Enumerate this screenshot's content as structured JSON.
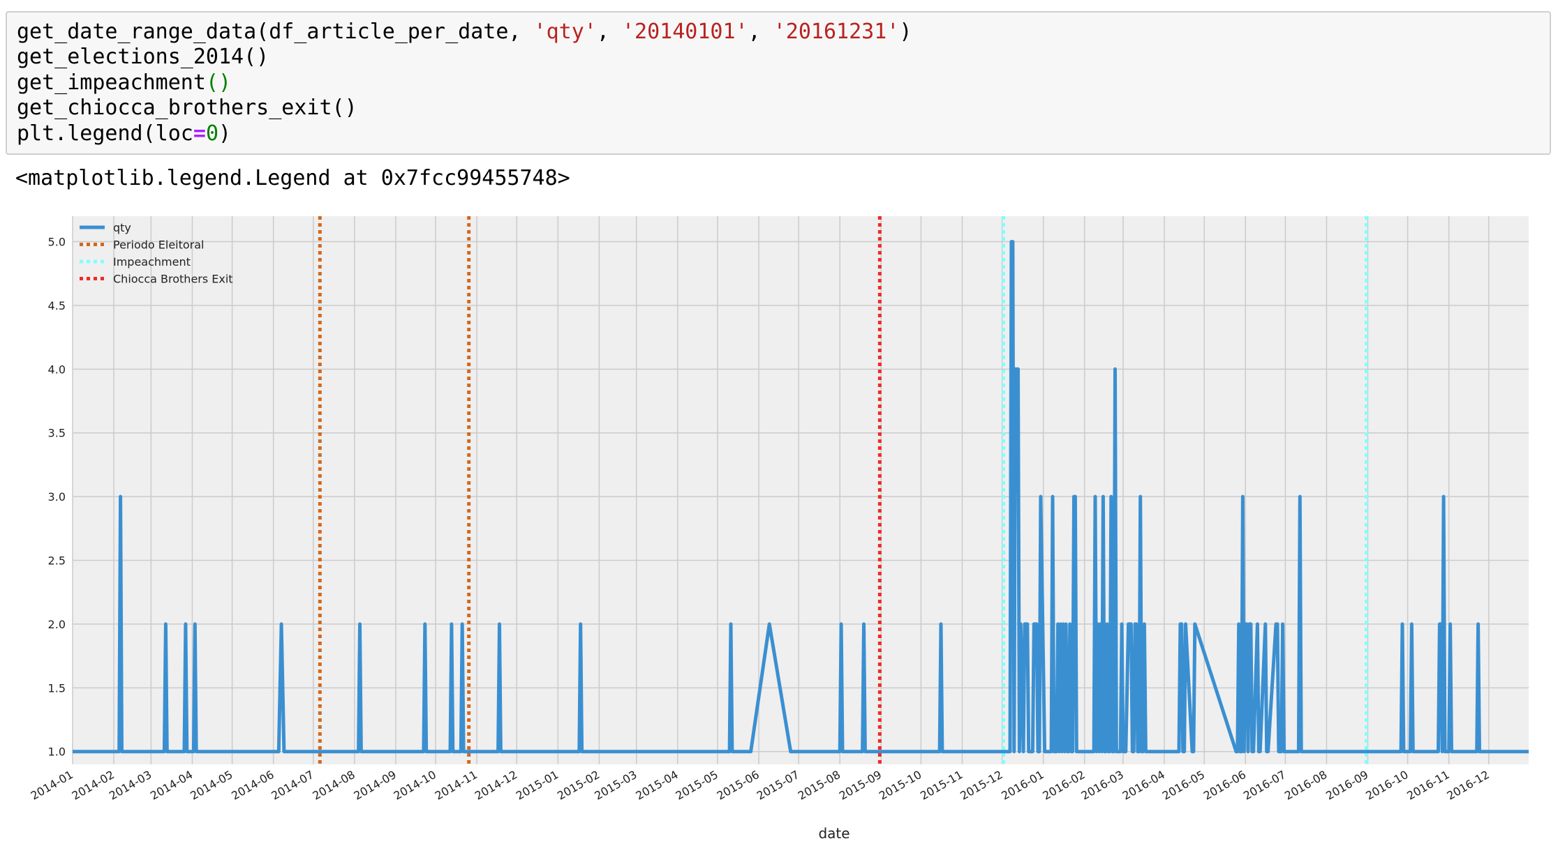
{
  "notebook": {
    "code_lines": [
      [
        {
          "t": "get_date_range_data(df_article_per_date, ",
          "c": "plain"
        },
        {
          "t": "'qty'",
          "c": "str"
        },
        {
          "t": ", ",
          "c": "plain"
        },
        {
          "t": "'20140101'",
          "c": "str"
        },
        {
          "t": ", ",
          "c": "plain"
        },
        {
          "t": "'20161231'",
          "c": "str"
        },
        {
          "t": ")",
          "c": "plain"
        }
      ],
      [
        {
          "t": "get_elections_2014()",
          "c": "plain"
        }
      ],
      [
        {
          "t": "get_impeachment",
          "c": "plain"
        },
        {
          "t": "()",
          "c": "green"
        }
      ],
      [
        {
          "t": "get_chiocca_brothers_exit()",
          "c": "plain"
        }
      ],
      [
        {
          "t": "plt.legend(loc",
          "c": "plain"
        },
        {
          "t": "=",
          "c": "op"
        },
        {
          "t": "0",
          "c": "green"
        },
        {
          "t": ")",
          "c": "plain"
        }
      ]
    ],
    "output_text": "<matplotlib.legend.Legend at 0x7fcc99455748>"
  },
  "chart_data": {
    "type": "line",
    "xlabel": "date",
    "ylabel": "",
    "ylim": [
      0.9,
      5.2
    ],
    "xlim": [
      "2014-01-01",
      "2016-12-31"
    ],
    "y_ticks": [
      "1.0",
      "1.5",
      "2.0",
      "2.5",
      "3.0",
      "3.5",
      "4.0",
      "4.5",
      "5.0"
    ],
    "x_ticks": [
      "2014-01",
      "2014-02",
      "2014-03",
      "2014-04",
      "2014-05",
      "2014-06",
      "2014-07",
      "2014-08",
      "2014-09",
      "2014-10",
      "2014-11",
      "2014-12",
      "2015-01",
      "2015-02",
      "2015-03",
      "2015-04",
      "2015-05",
      "2015-06",
      "2015-07",
      "2015-08",
      "2015-09",
      "2015-10",
      "2015-11",
      "2015-12",
      "2016-01",
      "2016-02",
      "2016-03",
      "2016-04",
      "2016-05",
      "2016-06",
      "2016-07",
      "2016-08",
      "2016-09",
      "2016-10",
      "2016-11",
      "2016-12"
    ],
    "grid": true,
    "legend_position": "top-left",
    "series": [
      {
        "name": "qty",
        "color": "#3a8fd1",
        "style": "solid",
        "x": [
          "2014-01-01",
          "2014-02-05",
          "2014-02-06",
          "2014-02-07",
          "2014-03-11",
          "2014-03-12",
          "2014-03-13",
          "2014-03-26",
          "2014-03-27",
          "2014-03-28",
          "2014-04-02",
          "2014-04-03",
          "2014-04-04",
          "2014-06-05",
          "2014-06-07",
          "2014-06-09",
          "2014-08-04",
          "2014-08-05",
          "2014-08-06",
          "2014-09-22",
          "2014-09-23",
          "2014-09-24",
          "2014-10-12",
          "2014-10-13",
          "2014-10-14",
          "2014-10-20",
          "2014-10-21",
          "2014-10-22",
          "2014-11-17",
          "2014-11-18",
          "2014-11-19",
          "2015-01-17",
          "2015-01-18",
          "2015-01-19",
          "2015-05-10",
          "2015-05-11",
          "2015-05-12",
          "2015-05-26",
          "2015-06-09",
          "2015-06-25",
          "2015-08-01",
          "2015-08-02",
          "2015-08-03",
          "2015-08-18",
          "2015-08-19",
          "2015-08-20",
          "2015-10-15",
          "2015-10-16",
          "2015-10-17",
          "2015-12-07",
          "2015-12-08",
          "2015-12-09",
          "2015-12-10",
          "2015-12-11",
          "2015-12-13",
          "2015-12-14",
          "2015-12-15",
          "2015-12-17",
          "2015-12-18",
          "2015-12-19",
          "2015-12-20",
          "2015-12-21",
          "2015-12-24",
          "2015-12-25",
          "2015-12-27",
          "2015-12-28",
          "2015-12-29",
          "2015-12-30",
          "2016-01-02",
          "2016-01-03",
          "2016-01-04",
          "2016-01-07",
          "2016-01-08",
          "2016-01-09",
          "2016-01-11",
          "2016-01-12",
          "2016-01-13",
          "2016-01-14",
          "2016-01-15",
          "2016-01-16",
          "2016-01-17",
          "2016-01-18",
          "2016-01-19",
          "2016-01-20",
          "2016-01-21",
          "2016-01-22",
          "2016-01-23",
          "2016-01-24",
          "2016-01-25",
          "2016-01-26",
          "2016-02-08",
          "2016-02-09",
          "2016-02-10",
          "2016-02-11",
          "2016-02-12",
          "2016-02-13",
          "2016-02-14",
          "2016-02-15",
          "2016-02-16",
          "2016-02-17",
          "2016-02-18",
          "2016-02-19",
          "2016-02-20",
          "2016-02-21",
          "2016-02-22",
          "2016-02-23",
          "2016-02-24",
          "2016-02-25",
          "2016-02-26",
          "2016-02-28",
          "2016-02-29",
          "2016-03-01",
          "2016-03-02",
          "2016-03-03",
          "2016-03-05",
          "2016-03-06",
          "2016-03-07",
          "2016-03-08",
          "2016-03-09",
          "2016-03-10",
          "2016-03-11",
          "2016-03-12",
          "2016-03-13",
          "2016-03-14",
          "2016-03-15",
          "2016-03-16",
          "2016-03-17",
          "2016-03-18",
          "2016-03-19",
          "2016-03-20",
          "2016-04-03",
          "2016-04-04",
          "2016-04-05",
          "2016-04-12",
          "2016-04-13",
          "2016-04-14",
          "2016-04-15",
          "2016-04-16",
          "2016-04-17",
          "2016-04-22",
          "2016-04-23",
          "2016-04-24",
          "2016-05-25",
          "2016-05-26",
          "2016-05-27",
          "2016-05-28",
          "2016-05-29",
          "2016-05-30",
          "2016-05-31",
          "2016-06-01",
          "2016-06-02",
          "2016-06-03",
          "2016-06-04",
          "2016-06-05",
          "2016-06-06",
          "2016-06-07",
          "2016-06-10",
          "2016-06-11",
          "2016-06-12",
          "2016-06-16",
          "2016-06-17",
          "2016-06-18",
          "2016-06-24",
          "2016-06-25",
          "2016-06-26",
          "2016-06-27",
          "2016-06-28",
          "2016-06-29",
          "2016-06-30",
          "2016-07-01",
          "2016-07-02",
          "2016-07-11",
          "2016-07-12",
          "2016-07-13",
          "2016-09-26",
          "2016-09-27",
          "2016-09-28",
          "2016-10-03",
          "2016-10-04",
          "2016-10-05",
          "2016-10-24",
          "2016-10-25",
          "2016-10-26",
          "2016-10-27",
          "2016-10-28",
          "2016-10-29",
          "2016-11-01",
          "2016-11-02",
          "2016-11-03",
          "2016-11-22",
          "2016-11-23",
          "2016-11-24",
          "2016-12-31"
        ],
        "y": [
          1,
          1,
          3,
          1,
          1,
          2,
          1,
          1,
          2,
          1,
          1,
          2,
          1,
          1,
          2,
          1,
          1,
          2,
          1,
          1,
          2,
          1,
          1,
          2,
          1,
          1,
          2,
          1,
          1,
          2,
          1,
          1,
          2,
          1,
          1,
          2,
          1,
          1,
          2,
          1,
          1,
          2,
          1,
          1,
          2,
          1,
          1,
          2,
          1,
          1,
          5,
          5,
          1,
          4,
          4,
          1,
          2,
          1,
          2,
          2,
          2,
          1,
          1,
          2,
          2,
          1,
          1,
          3,
          1,
          1,
          1,
          1,
          3,
          1,
          1,
          2,
          1,
          2,
          1,
          2,
          1,
          2,
          1,
          1,
          2,
          1,
          1,
          3,
          3,
          1,
          1,
          3,
          1,
          2,
          1,
          2,
          1,
          3,
          1,
          1,
          2,
          1,
          1,
          3,
          1,
          1,
          4,
          1,
          1,
          1,
          2,
          1,
          1,
          1,
          2,
          2,
          2,
          1,
          1,
          2,
          2,
          1,
          1,
          3,
          1,
          1,
          2,
          1,
          1,
          1,
          1,
          1,
          1,
          1,
          2,
          2,
          1,
          1,
          2,
          1,
          1,
          2,
          1,
          1,
          2,
          1,
          1,
          3,
          1,
          2,
          2,
          1,
          2,
          2,
          1,
          1,
          2,
          1,
          1,
          2,
          1,
          1,
          2,
          2,
          1,
          1,
          1,
          2,
          1,
          1,
          1,
          1,
          3,
          1,
          1,
          2,
          1,
          1,
          2,
          1,
          1,
          2,
          2,
          1,
          3,
          1,
          1,
          2,
          1,
          1,
          2,
          1,
          1
        ]
      },
      {
        "name": "Periodo Eleitoral",
        "color": "#d2691e",
        "style": "dotted",
        "x": [
          "2014-07-06",
          "2014-10-26"
        ]
      },
      {
        "name": "Impeachment",
        "color": "#7fffff",
        "style": "dotted",
        "x": [
          "2015-12-02",
          "2016-08-31"
        ]
      },
      {
        "name": "Chiocca Brothers Exit",
        "color": "#ef2b24",
        "style": "dotted",
        "x": [
          "2015-08-31"
        ]
      }
    ]
  }
}
